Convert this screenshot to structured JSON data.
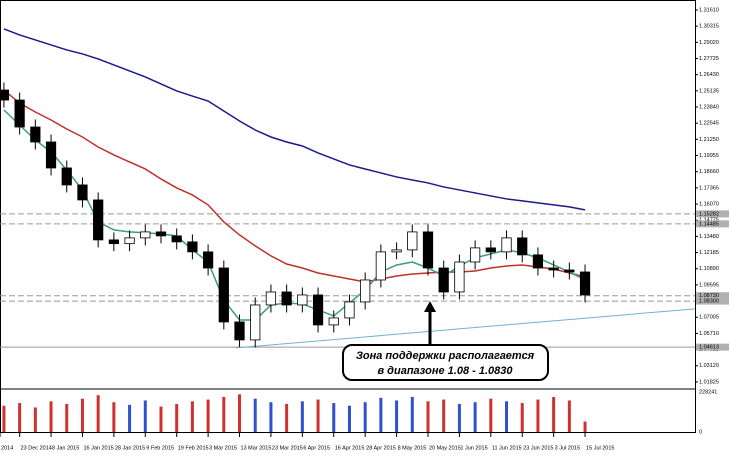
{
  "chart_data": {
    "type": "candlestick",
    "x": [
      0,
      4,
      8,
      12,
      16,
      20,
      24,
      28,
      32,
      36,
      40,
      44,
      48,
      52,
      56,
      60,
      64,
      68,
      72,
      76,
      80,
      84,
      88,
      92,
      96,
      100,
      104,
      108,
      112,
      116,
      120,
      124,
      128,
      132,
      136,
      140,
      144,
      148
    ],
    "open": [
      1.252,
      1.244,
      1.2224,
      1.2104,
      1.1896,
      1.176,
      1.164,
      1.132,
      1.129,
      1.1336,
      1.1384,
      1.1352,
      1.1304,
      1.1224,
      1.1095,
      1.0663,
      1.0519,
      1.0799,
      1.0903,
      1.0799,
      1.0879,
      1.0639,
      1.0695,
      1.0823,
      1.0999,
      1.1224,
      1.124,
      1.1384,
      1.1095,
      1.0903,
      1.1143,
      1.1256,
      1.1224,
      1.1336,
      1.12,
      1.1095,
      1.1079,
      1.1063
    ],
    "high": [
      1.258,
      1.25,
      1.2284,
      1.2164,
      1.1956,
      1.182,
      1.17,
      1.138,
      1.1396,
      1.1444,
      1.1444,
      1.1412,
      1.1364,
      1.1284,
      1.1155,
      1.0723,
      1.0859,
      1.0963,
      1.0963,
      1.0939,
      1.0939,
      1.0755,
      1.0883,
      1.1059,
      1.1284,
      1.13,
      1.1444,
      1.1444,
      1.1155,
      1.1203,
      1.1316,
      1.1316,
      1.1396,
      1.1396,
      1.126,
      1.1155,
      1.1139,
      1.1123
    ],
    "low": [
      1.238,
      1.2164,
      1.2044,
      1.1836,
      1.17,
      1.158,
      1.126,
      1.123,
      1.123,
      1.1276,
      1.1292,
      1.1244,
      1.1164,
      1.1035,
      1.0603,
      1.0462,
      1.0459,
      1.0739,
      1.0739,
      1.0739,
      1.0579,
      1.0579,
      1.0635,
      1.0763,
      1.0939,
      1.1164,
      1.118,
      1.1035,
      1.0843,
      1.0843,
      1.1083,
      1.1164,
      1.1164,
      1.114,
      1.1035,
      1.1019,
      1.1003,
      1.0819
    ],
    "close": [
      1.244,
      1.2224,
      1.2104,
      1.1896,
      1.176,
      1.164,
      1.132,
      1.129,
      1.1336,
      1.1384,
      1.1352,
      1.1304,
      1.1224,
      1.1095,
      1.0663,
      1.0519,
      1.0799,
      1.0903,
      1.0799,
      1.0879,
      1.0639,
      1.0695,
      1.0823,
      1.0999,
      1.1224,
      1.124,
      1.1384,
      1.1095,
      1.0903,
      1.1143,
      1.1256,
      1.1224,
      1.1336,
      1.12,
      1.1095,
      1.1079,
      1.1063,
      1.0879
    ],
    "up_color": "#ffffff",
    "down_color": "#000000",
    "series": [
      {
        "color": "#1a1a8a",
        "values": [
          1.3009,
          1.2961,
          1.2921,
          1.2881,
          1.2841,
          1.2809,
          1.2769,
          1.2721,
          1.2673,
          1.2625,
          1.2569,
          1.2513,
          1.2472,
          1.2432,
          1.2352,
          1.2272,
          1.22,
          1.2144,
          1.2104,
          1.2072,
          1.2016,
          1.1968,
          1.192,
          1.1888,
          1.1856,
          1.1824,
          1.18,
          1.1776,
          1.1744,
          1.172,
          1.1696,
          1.1672,
          1.1648,
          1.1632,
          1.1616,
          1.16,
          1.1584,
          1.156
        ]
      },
      {
        "color": "#c0302a",
        "values": [
          1.252,
          1.2416,
          1.2344,
          1.228,
          1.2208,
          1.2144,
          1.2064,
          1.2,
          1.1944,
          1.1888,
          1.1808,
          1.1736,
          1.168,
          1.16,
          1.1464,
          1.136,
          1.1272,
          1.1192,
          1.1127,
          1.1095,
          1.1055,
          1.1031,
          1.1007,
          1.0983,
          1.1007,
          1.1031,
          1.1047,
          1.1055,
          1.1063,
          1.1063,
          1.1071,
          1.1095,
          1.1111,
          1.1119,
          1.1103,
          1.1087,
          1.1055,
          1.1023
        ]
      },
      {
        "color": "#3a9e78",
        "values": [
          1.236,
          1.224,
          1.212,
          1.2024,
          1.188,
          1.172,
          1.1464,
          1.14,
          1.1384,
          1.1376,
          1.1368,
          1.1352,
          1.124,
          1.1143,
          1.0839,
          1.0679,
          1.0679,
          1.0799,
          1.0815,
          1.0807,
          1.0759,
          1.0711,
          1.0815,
          1.0919,
          1.1063,
          1.1119,
          1.1143,
          1.1095,
          1.1031,
          1.1111,
          1.1176,
          1.1208,
          1.124,
          1.1216,
          1.1176,
          1.1119,
          1.1063,
          1.0999
        ]
      }
    ],
    "xlim": [
      -1,
      176
    ],
    "ylim": [
      1.0134,
      1.3241
    ],
    "yticks": [
      {
        "value": 1.01825,
        "label": "1.01825"
      },
      {
        "value": 1.0312,
        "label": "1.03120"
      },
      {
        "value": 1.04415,
        "label": "1.04415"
      },
      {
        "value": 1.0571,
        "label": "1.05710"
      },
      {
        "value": 1.07005,
        "label": "1.07005"
      },
      {
        "value": 1.083,
        "label": "1.08300"
      },
      {
        "value": 1.09595,
        "label": "1.09595"
      },
      {
        "value": 1.1089,
        "label": "1.10890"
      },
      {
        "value": 1.12185,
        "label": "1.12185"
      },
      {
        "value": 1.1348,
        "label": "1.13480"
      },
      {
        "value": 1.14775,
        "label": "1.14775"
      },
      {
        "value": 1.1607,
        "label": "1.16070"
      },
      {
        "value": 1.17365,
        "label": "1.17365"
      },
      {
        "value": 1.1866,
        "label": "1.18660"
      },
      {
        "value": 1.19955,
        "label": "1.19955"
      },
      {
        "value": 1.2125,
        "label": "1.21250"
      },
      {
        "value": 1.22545,
        "label": "1.22545"
      },
      {
        "value": 1.2384,
        "label": "1.23840"
      },
      {
        "value": 1.25135,
        "label": "1.25135"
      },
      {
        "value": 1.2643,
        "label": "1.26430"
      },
      {
        "value": 1.27725,
        "label": "1.27725"
      },
      {
        "value": 1.2902,
        "label": "1.29020"
      },
      {
        "value": 1.30315,
        "label": "1.30315"
      },
      {
        "value": 1.3161,
        "label": "1.31610"
      }
    ],
    "xticks": [
      {
        "value": -1,
        "label": "2014"
      },
      {
        "value": 4,
        "label": "23 Dec 2014"
      },
      {
        "value": 12,
        "label": "8 Jan 2015"
      },
      {
        "value": 20,
        "label": "16 Jan 2015"
      },
      {
        "value": 28,
        "label": "28 Jan 2015"
      },
      {
        "value": 36,
        "label": "9 Feb 2015"
      },
      {
        "value": 44,
        "label": "19 Feb 2015"
      },
      {
        "value": 52,
        "label": "3 Mar 2015"
      },
      {
        "value": 60,
        "label": "13 Mar 2015"
      },
      {
        "value": 68,
        "label": "23 Mar 2015"
      },
      {
        "value": 76,
        "label": "6 Apr 2015"
      },
      {
        "value": 84,
        "label": "16 Apr 2015"
      },
      {
        "value": 92,
        "label": "28 Apr 2015"
      },
      {
        "value": 100,
        "label": "8 May 2015"
      },
      {
        "value": 108,
        "label": "20 May 2015"
      },
      {
        "value": 116,
        "label": "1 Jun 2015"
      },
      {
        "value": 124,
        "label": "11 Jun 2015"
      },
      {
        "value": 132,
        "label": "23 Jun 2015"
      },
      {
        "value": 140,
        "label": "3 Jul 2015"
      },
      {
        "value": 148,
        "label": "15 Jul 2015"
      }
    ],
    "levels": [
      {
        "value": 1.15282,
        "label": "1.15282",
        "style": "dashed"
      },
      {
        "value": 1.14485,
        "label": "1.14485",
        "style": "dashed"
      },
      {
        "value": 1.0873,
        "label": "1.08730",
        "style": "dashed"
      },
      {
        "value": 1.083,
        "label": "1.08300",
        "style": "dashed"
      },
      {
        "value": 1.04613,
        "label": "1.04613",
        "style": "solid"
      }
    ],
    "trendline": {
      "x": [
        59,
        176
      ],
      "y": [
        1.0455,
        1.0768
      ],
      "color": "#6fb0d6"
    },
    "volume": {
      "values": [
        150000,
        165000,
        140000,
        175000,
        160000,
        190000,
        210000,
        170000,
        155000,
        180000,
        145000,
        160000,
        175000,
        185000,
        200000,
        215000,
        190000,
        170000,
        160000,
        175000,
        185000,
        165000,
        150000,
        170000,
        195000,
        180000,
        200000,
        175000,
        185000,
        160000,
        170000,
        190000,
        175000,
        165000,
        185000,
        200000,
        180000,
        60000
      ],
      "ylim": [
        0,
        228241
      ],
      "yticks": [
        0,
        228241
      ],
      "up_color": "#3050d0",
      "down_color": "#d03030"
    },
    "annotation": {
      "lines": [
        "Зона поддержки располагается",
        "в диапазоне 1.08 - 1.0830"
      ]
    }
  }
}
